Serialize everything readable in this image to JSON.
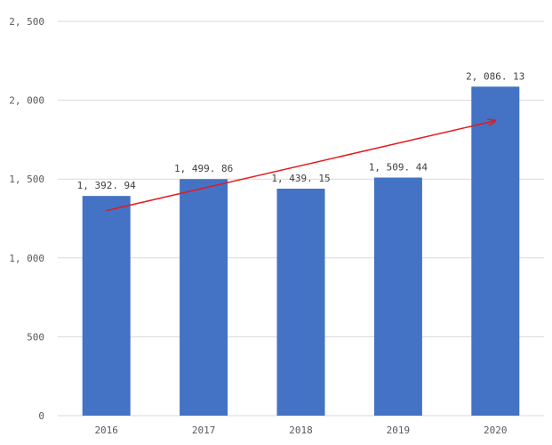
{
  "chart_data": {
    "type": "bar",
    "categories": [
      "2016",
      "2017",
      "2018",
      "2019",
      "2020"
    ],
    "values": [
      1392.94,
      1499.86,
      1439.15,
      1509.44,
      2086.13
    ],
    "data_labels": [
      "1, 392. 94",
      "1, 499. 86",
      "1, 439. 15",
      "1, 509. 44",
      "2, 086. 13"
    ],
    "y_ticks": [
      0,
      500,
      1000,
      1500,
      2000,
      2500
    ],
    "y_tick_labels": [
      "0",
      "500",
      "1, 000",
      "1, 500",
      "2, 000",
      "2, 500"
    ],
    "ylim": [
      0,
      2500
    ],
    "grid": true,
    "legend": "none",
    "title": "",
    "xlabel": "",
    "ylabel": "",
    "annotations": [
      {
        "type": "trend-arrow",
        "from_category": "2016",
        "to_category": "2020",
        "from_value": 1300,
        "to_value": 1870
      }
    ],
    "colors": {
      "bar": "#4472c4",
      "arrow": "#e31a1c",
      "grid": "#d9d9d9",
      "text": "#595959"
    }
  }
}
